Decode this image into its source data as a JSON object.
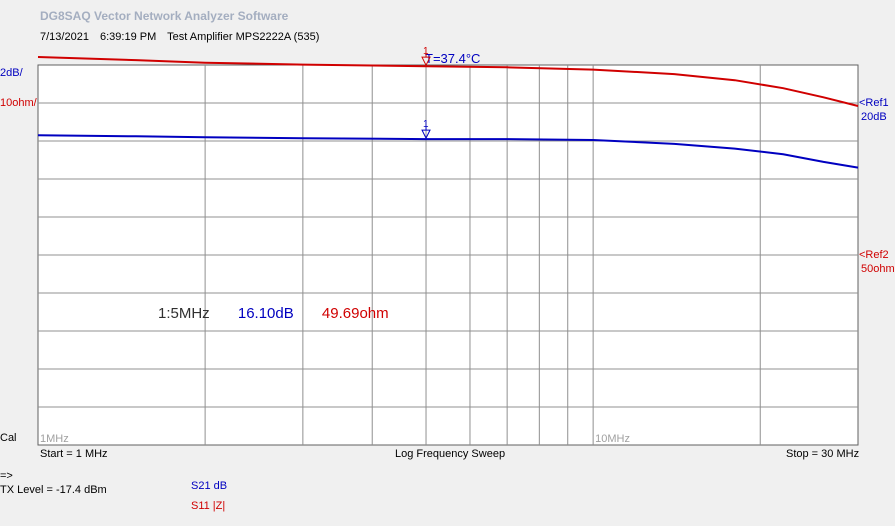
{
  "app_title": "DG8SAQ Vector Network Analyzer Software",
  "header": {
    "date": "7/13/2021",
    "time": "6:39:19 PM",
    "description": "Test Amplifier MPS2222A (535)"
  },
  "temperature": "T=37.4°C",
  "left_scale": {
    "s21": "2dB/",
    "s11": "10ohm/"
  },
  "right_refs": {
    "ref1": {
      "label": "<Ref1",
      "value": "20dB",
      "color": "#0000c0"
    },
    "ref2": {
      "label": "<Ref2",
      "value": "50ohm",
      "color": "#d00000"
    }
  },
  "cal_label": "Cal",
  "x_tick_labels": [
    "1MHz",
    "10MHz"
  ],
  "sweep": {
    "start": "Start = 1 MHz",
    "mode": "Log Frequency Sweep",
    "stop": "Stop = 30 MHz"
  },
  "marker_readout": {
    "marker": "1:5MHz",
    "s21_value": "16.10dB",
    "s11_value": "49.69ohm"
  },
  "marker_label": "1",
  "status": {
    "arrow": "=>",
    "tx_level": "TX Level = -17.4 dBm"
  },
  "legend": [
    {
      "name": "S21  dB",
      "color": "#0000c0"
    },
    {
      "name": "S11  |Z|",
      "color": "#d00000"
    }
  ],
  "chart_data": {
    "type": "line",
    "x_scale": "log",
    "x_unit": "MHz",
    "xlim": [
      1,
      30
    ],
    "grid": true,
    "series": [
      {
        "name": "S21  dB",
        "color": "#0000c0",
        "y_unit": "dB",
        "ref_value": 20,
        "per_div": 2,
        "ylim": [
          0,
          20
        ],
        "points": [
          [
            1,
            16.3
          ],
          [
            1.5,
            16.25
          ],
          [
            2,
            16.2
          ],
          [
            3,
            16.15
          ],
          [
            5,
            16.1
          ],
          [
            7,
            16.1
          ],
          [
            10,
            16.05
          ],
          [
            14,
            15.85
          ],
          [
            18,
            15.6
          ],
          [
            22,
            15.3
          ],
          [
            26,
            14.9
          ],
          [
            30,
            14.6
          ]
        ]
      },
      {
        "name": "S11  |Z|",
        "color": "#d00000",
        "y_unit": "ohm",
        "ref_value": 50,
        "per_div": 10,
        "ylim": [
          -50,
          50
        ],
        "points": [
          [
            1,
            52.1
          ],
          [
            1.5,
            51.3
          ],
          [
            2,
            50.6
          ],
          [
            3,
            50.1
          ],
          [
            5,
            49.69
          ],
          [
            7,
            49.4
          ],
          [
            10,
            48.8
          ],
          [
            14,
            47.6
          ],
          [
            18,
            46.0
          ],
          [
            22,
            43.9
          ],
          [
            26,
            41.5
          ],
          [
            30,
            39.2
          ]
        ]
      }
    ],
    "marker": {
      "x": 5
    }
  }
}
